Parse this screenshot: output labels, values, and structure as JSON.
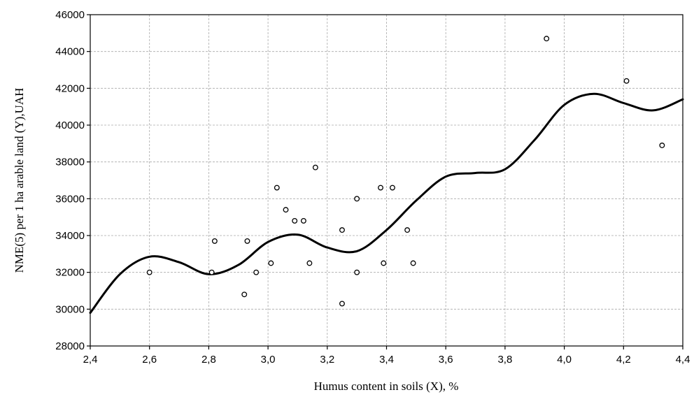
{
  "chart_data": {
    "type": "scatter",
    "xlabel": "Humus content in soils (X), %",
    "ylabel": "NME(5) per 1 ha arable land (Y),UAH",
    "xlim": [
      2.4,
      4.4
    ],
    "ylim": [
      28000,
      46000
    ],
    "x_ticks": [
      2.4,
      2.6,
      2.8,
      3.0,
      3.2,
      3.4,
      3.6,
      3.8,
      4.0,
      4.2,
      4.4
    ],
    "x_tick_labels": [
      "2,4",
      "2,6",
      "2,8",
      "3,0",
      "3,2",
      "3,4",
      "3,6",
      "3,8",
      "4,0",
      "4,2",
      "4,4"
    ],
    "y_ticks": [
      28000,
      30000,
      32000,
      34000,
      36000,
      38000,
      40000,
      42000,
      44000,
      46000
    ],
    "y_tick_labels": [
      "28000",
      "30000",
      "32000",
      "34000",
      "36000",
      "38000",
      "40000",
      "42000",
      "44000",
      "46000"
    ],
    "grid": true,
    "points": [
      {
        "x": 2.6,
        "y": 32000
      },
      {
        "x": 2.81,
        "y": 32000
      },
      {
        "x": 2.82,
        "y": 33700
      },
      {
        "x": 2.92,
        "y": 30800
      },
      {
        "x": 2.93,
        "y": 33700
      },
      {
        "x": 2.96,
        "y": 32000
      },
      {
        "x": 3.01,
        "y": 32500
      },
      {
        "x": 3.03,
        "y": 36600
      },
      {
        "x": 3.06,
        "y": 35400
      },
      {
        "x": 3.09,
        "y": 34800
      },
      {
        "x": 3.12,
        "y": 34800
      },
      {
        "x": 3.14,
        "y": 32500
      },
      {
        "x": 3.16,
        "y": 37700
      },
      {
        "x": 3.25,
        "y": 34300
      },
      {
        "x": 3.25,
        "y": 30300
      },
      {
        "x": 3.3,
        "y": 36000
      },
      {
        "x": 3.3,
        "y": 32000
      },
      {
        "x": 3.38,
        "y": 36600
      },
      {
        "x": 3.39,
        "y": 32500
      },
      {
        "x": 3.42,
        "y": 36600
      },
      {
        "x": 3.47,
        "y": 34300
      },
      {
        "x": 3.49,
        "y": 32500
      },
      {
        "x": 3.94,
        "y": 44700
      },
      {
        "x": 4.21,
        "y": 42400
      },
      {
        "x": 4.33,
        "y": 38900
      }
    ],
    "fit_curve": {
      "x": [
        2.4,
        2.5,
        2.6,
        2.7,
        2.8,
        2.9,
        3.0,
        3.1,
        3.2,
        3.3,
        3.4,
        3.5,
        3.6,
        3.7,
        3.8,
        3.9,
        4.0,
        4.1,
        4.2,
        4.3,
        4.4
      ],
      "y": [
        29800,
        31900,
        32850,
        32550,
        31900,
        32400,
        33650,
        34050,
        33350,
        33150,
        34300,
        35900,
        37200,
        37400,
        37600,
        39200,
        41100,
        41700,
        41200,
        40800,
        41400
      ]
    }
  }
}
